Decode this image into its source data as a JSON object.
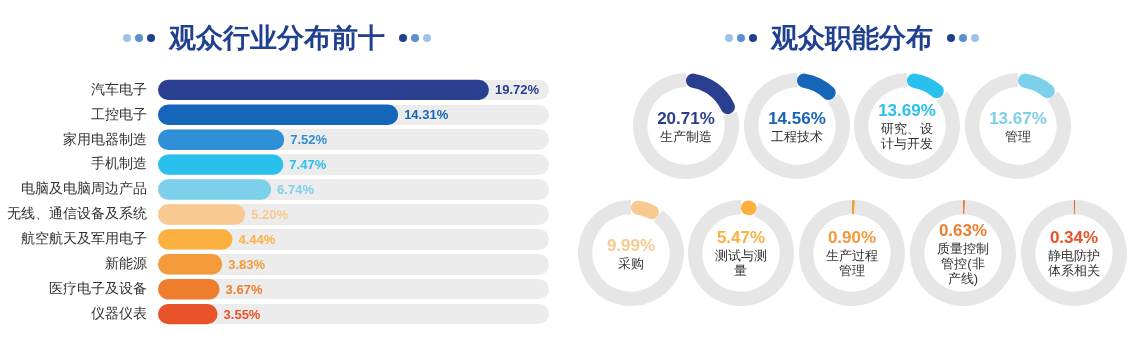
{
  "chart_data": [
    {
      "type": "bar",
      "title": "观众行业分布前十",
      "orientation": "horizontal",
      "categories": [
        "汽车电子",
        "工控电子",
        "家用电器制造",
        "手机制造",
        "电脑及电脑周边产品",
        "无线、通信设备及系统",
        "航空航天及军用电子",
        "新能源",
        "医疗电子及设备",
        "仪器仪表"
      ],
      "values": [
        19.72,
        14.31,
        7.52,
        7.47,
        6.74,
        5.2,
        4.44,
        3.83,
        3.67,
        3.55
      ],
      "colors": [
        "#2a3f8f",
        "#1565b8",
        "#2e8fd6",
        "#29c0ee",
        "#7dd0ea",
        "#f8c990",
        "#fbb040",
        "#f39a3a",
        "#ef7d2e",
        "#e8532a"
      ],
      "value_labels": [
        "19.72%",
        "14.31%",
        "7.52%",
        "7.47%",
        "6.74%",
        "5.20%",
        "4.44%",
        "3.83%",
        "3.67%",
        "3.55%"
      ],
      "xlim": [
        0,
        23.3
      ]
    },
    {
      "type": "donut",
      "title": "观众职能分布",
      "categories": [
        "生产制造",
        null
      ],
      "values": [
        20.71,
        79.29
      ],
      "colors": [
        "#2a3f8f",
        "#e6e6e6"
      ],
      "value_labels": [
        "20.71%",
        null
      ]
    },
    {
      "type": "donut",
      "categories": [
        "工程技术",
        null
      ],
      "values": [
        14.56,
        85.44
      ],
      "colors": [
        "#1565b8",
        "#e6e6e6"
      ],
      "value_labels": [
        "14.56%",
        null
      ]
    },
    {
      "type": "donut",
      "categories": [
        "研究、设计与开发",
        null
      ],
      "values": [
        13.69,
        86.31
      ],
      "colors": [
        "#29c0ee",
        "#e6e6e6"
      ],
      "value_labels": [
        "13.69%",
        null
      ]
    },
    {
      "type": "donut",
      "categories": [
        "管理",
        null
      ],
      "values": [
        13.67,
        86.33
      ],
      "colors": [
        "#7dd0ea",
        "#e6e6e6"
      ],
      "value_labels": [
        "13.67%",
        null
      ]
    },
    {
      "type": "donut",
      "categories": [
        "采购",
        null
      ],
      "values": [
        9.99,
        90.01
      ],
      "colors": [
        "#f8c990",
        "#e6e6e6"
      ],
      "value_labels": [
        "9.99%",
        null
      ]
    },
    {
      "type": "donut",
      "categories": [
        "测试与测量",
        null
      ],
      "values": [
        5.47,
        94.53
      ],
      "colors": [
        "#fbb040",
        "#e6e6e6"
      ],
      "value_labels": [
        "5.47%",
        null
      ]
    },
    {
      "type": "donut",
      "categories": [
        "生产过程管理",
        null
      ],
      "values": [
        0.9,
        99.1
      ],
      "colors": [
        "#f39a3a",
        "#e6e6e6"
      ],
      "value_labels": [
        "0.90%",
        null
      ]
    },
    {
      "type": "donut",
      "categories": [
        "质量控制管控(非产线)",
        null
      ],
      "values": [
        0.63,
        99.37
      ],
      "colors": [
        "#ef7d2e",
        "#e6e6e6"
      ],
      "value_labels": [
        "0.63%",
        null
      ]
    },
    {
      "type": "donut",
      "categories": [
        "静电防护体系相关",
        null
      ],
      "values": [
        0.34,
        99.66
      ],
      "colors": [
        "#e8532a",
        "#e6e6e6"
      ],
      "value_labels": [
        "0.34%",
        null
      ]
    }
  ]
}
